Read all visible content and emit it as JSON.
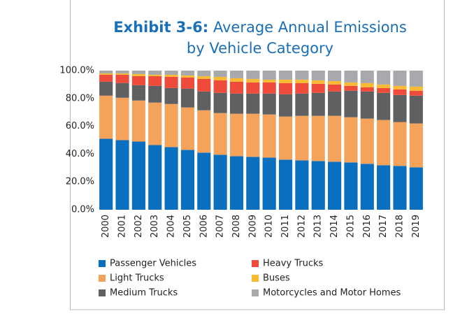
{
  "chart_data": {
    "type": "stacked_bar",
    "title_prefix": "Exhibit 3-6:",
    "title_lines": [
      "Average Annual Emissions",
      "by Vehicle Category"
    ],
    "categories": [
      "2000",
      "2001",
      "2002",
      "2003",
      "2004",
      "2005",
      "2006",
      "2007",
      "2008",
      "2009",
      "2010",
      "2011",
      "2012",
      "2013",
      "2014",
      "2015",
      "2016",
      "2017",
      "2018",
      "2019"
    ],
    "series": [
      {
        "name": "Passenger Vehicles",
        "color": "#0b6fc0",
        "values": [
          51,
          50,
          49,
          46.5,
          45,
          43,
          41,
          39.5,
          38.5,
          38,
          37.5,
          36,
          35.5,
          35,
          34.5,
          34,
          33,
          32,
          31.5,
          30.5
        ]
      },
      {
        "name": "Light Trucks",
        "color": "#f5a35a",
        "values": [
          31,
          30.5,
          29.5,
          30.5,
          31,
          30.5,
          30.5,
          30,
          30.5,
          31,
          31,
          31,
          32,
          32.5,
          33,
          32.5,
          32.5,
          32.5,
          31.5,
          31.5
        ]
      },
      {
        "name": "Medium Trucks",
        "color": "#5f6062",
        "values": [
          10,
          10.5,
          11,
          12,
          11.5,
          13.5,
          13.5,
          14.5,
          14.5,
          14.5,
          15,
          16,
          16,
          16.5,
          17.5,
          19,
          19.5,
          19.5,
          19.5,
          20
        ]
      },
      {
        "name": "Heavy Trucks",
        "color": "#ef4b3a",
        "values": [
          5,
          6,
          6.5,
          7,
          8,
          8,
          9,
          9,
          8.5,
          8,
          8,
          8,
          7.5,
          6.5,
          5,
          3.5,
          3,
          3.5,
          4,
          3.5
        ]
      },
      {
        "name": "Buses",
        "color": "#fbb934",
        "values": [
          1,
          1,
          1.5,
          1,
          1.5,
          1.5,
          2,
          2.5,
          2.5,
          2.5,
          2,
          2.5,
          2.5,
          2.5,
          2.5,
          2.5,
          3,
          2.5,
          2.5,
          3
        ]
      },
      {
        "name": "Motorcycles and Motor Homes",
        "color": "#a7a9ac",
        "values": [
          2,
          2,
          2.5,
          3,
          3,
          3.5,
          4,
          4.5,
          5.5,
          6,
          6.5,
          6.5,
          6.5,
          7,
          7.5,
          8.5,
          9,
          10,
          11,
          11.5
        ]
      }
    ],
    "ylim": [
      0,
      100
    ],
    "yticks": [
      {
        "value": 0,
        "label": "0.0%"
      },
      {
        "value": 20,
        "label": "20.0%"
      },
      {
        "value": 40,
        "label": "40.0%"
      },
      {
        "value": 60,
        "label": "60.0%"
      },
      {
        "value": 80,
        "label": "80.0%"
      },
      {
        "value": 100,
        "label": "100.0%"
      }
    ],
    "grid": false
  }
}
